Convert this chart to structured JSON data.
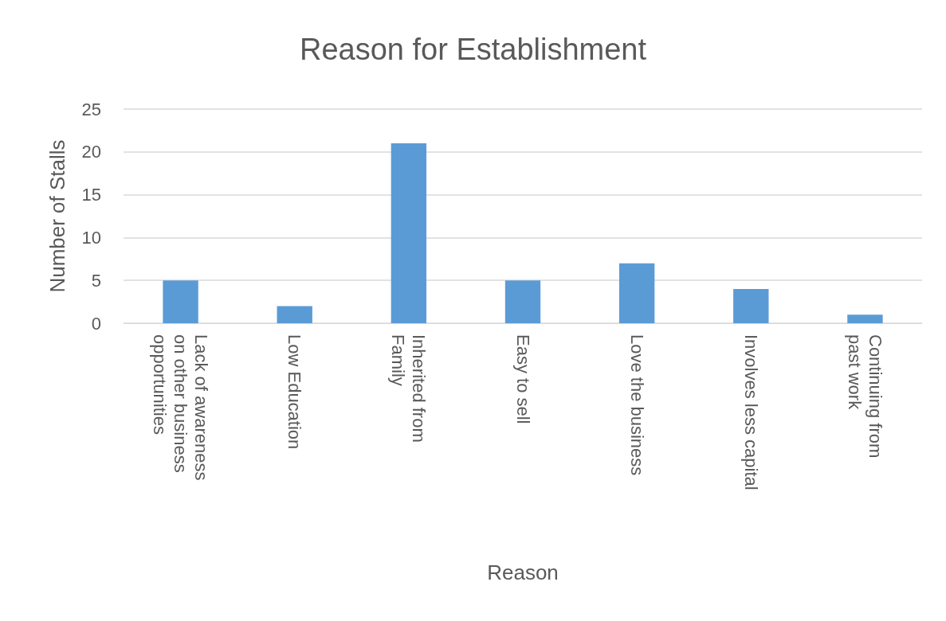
{
  "chart_data": {
    "type": "bar",
    "title": "Reason for Establishment",
    "xlabel": "Reason",
    "ylabel": "Number of Stalls",
    "categories": [
      "Lack of awareness on other business opportunities",
      "Low Education",
      "Inherited from Family",
      "Easy to sell",
      "Love the business",
      "Involves less capital",
      "Continuing from past work"
    ],
    "values": [
      5,
      2,
      21,
      5,
      7,
      4,
      1
    ],
    "color": "#5b9bd5",
    "ylim": [
      0,
      25
    ],
    "yticks": [
      0,
      5,
      10,
      15,
      20,
      25
    ],
    "grid": "y"
  }
}
